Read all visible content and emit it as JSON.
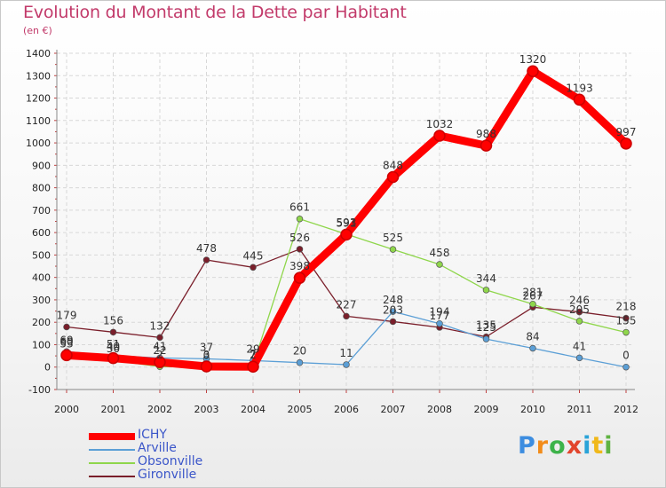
{
  "title": "Evolution du Montant de la Dette par Habitant",
  "subtitle": "(en €)",
  "brand": [
    "P",
    "r",
    "o",
    "x",
    "i",
    "t",
    "i"
  ],
  "brand_colors": [
    "#3d8de0",
    "#f28c1a",
    "#3db34a",
    "#e2452c",
    "#2aa3d8",
    "#f0b81a",
    "#5fb342"
  ],
  "chart_data": {
    "type": "line",
    "title": "Evolution du Montant de la Dette par Habitant",
    "subtitle": "(en €)",
    "x": [
      "2000",
      "2001",
      "2002",
      "2003",
      "2004",
      "2005",
      "2006",
      "2007",
      "2008",
      "2009",
      "2010",
      "2011",
      "2012"
    ],
    "ylim": [
      -100,
      1400
    ],
    "yticks": [
      -100,
      0,
      100,
      200,
      300,
      400,
      500,
      600,
      700,
      800,
      900,
      1000,
      1100,
      1200,
      1300,
      1400
    ],
    "grid": true,
    "legend_position": "bottom-left",
    "series": [
      {
        "name": "Gironville",
        "color": "#7a1e2a",
        "values": [
          179,
          156,
          132,
          478,
          445,
          526,
          227,
          203,
          177,
          135,
          267,
          246,
          218
        ],
        "labels": [
          "179",
          "156",
          "132",
          "478",
          "445",
          "526",
          "227",
          "203",
          "177",
          "135",
          "267",
          "246",
          "218"
        ]
      },
      {
        "name": "Arville",
        "color": "#5b9fd6",
        "values": [
          69,
          51,
          41,
          37,
          29,
          20,
          11,
          248,
          194,
          125,
          84,
          41,
          0
        ],
        "labels": [
          "69",
          "51",
          "41",
          "37",
          "29",
          "20",
          "11",
          "248",
          "194",
          "125",
          "84",
          "41",
          "0"
        ]
      },
      {
        "name": "Obsonville",
        "color": "#8fd64b",
        "values": [
          60,
          30,
          2,
          0,
          7,
          661,
          593,
          525,
          458,
          344,
          281,
          205,
          155
        ],
        "labels": [
          "60",
          "30",
          "2",
          "0",
          "7",
          "661",
          "593",
          "525",
          "458",
          "344",
          "281",
          "205",
          "155"
        ]
      },
      {
        "name": "ICHY",
        "color": "#ff0000",
        "values": [
          53,
          40,
          22,
          3,
          2,
          398,
          591,
          848,
          1032,
          988,
          1320,
          1193,
          997
        ],
        "labels": [
          "53",
          "40",
          "22",
          "3",
          "2",
          "398",
          "591",
          "848",
          "1032",
          "988",
          "1320",
          "1193",
          "997"
        ]
      }
    ],
    "legend_order": [
      "ICHY",
      "Arville",
      "Obsonville",
      "Gironville"
    ]
  }
}
